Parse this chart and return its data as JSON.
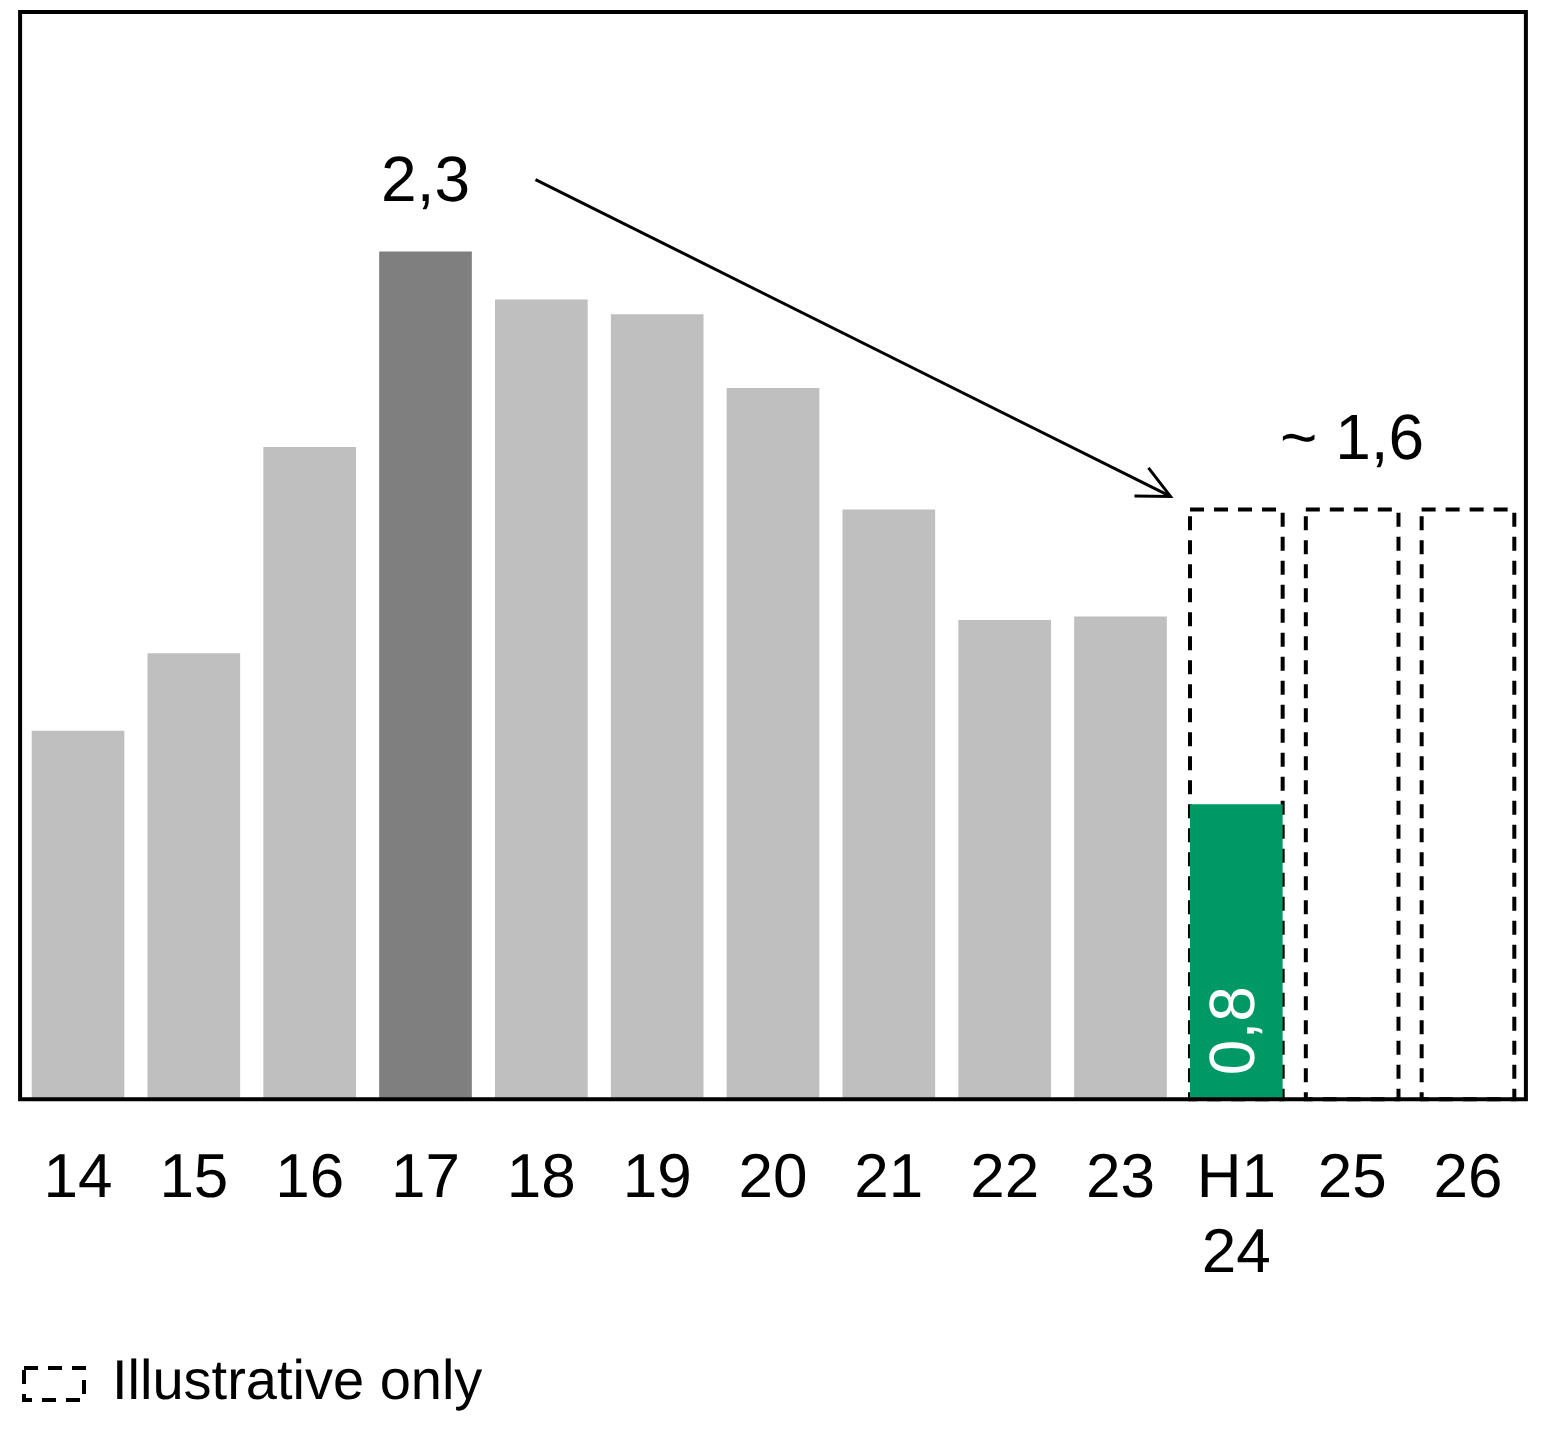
{
  "chart_data": {
    "type": "bar",
    "categories": [
      "14",
      "15",
      "16",
      "17",
      "18",
      "19",
      "20",
      "21",
      "22",
      "23",
      "H1 24",
      "25",
      "26"
    ],
    "series": [
      {
        "colors": [
          "#bfbfbf",
          "#bfbfbf",
          "#bfbfbf",
          "#7f7f7f",
          "#bfbfbf",
          "#bfbfbf",
          "#bfbfbf",
          "#bfbfbf",
          "#bfbfbf",
          "#bfbfbf",
          "#009966",
          null,
          null
        ],
        "values": [
          1.0,
          1.21,
          1.77,
          2.3,
          2.17,
          2.13,
          1.93,
          1.6,
          1.3,
          1.31,
          0.8,
          null,
          null
        ],
        "value_labels": [
          null,
          null,
          null,
          "2,3",
          null,
          null,
          null,
          null,
          null,
          null,
          "0,8",
          null,
          null
        ]
      },
      {
        "name": "Illustrative only",
        "color": "#000000",
        "line_style": "dashed",
        "values": [
          null,
          null,
          null,
          null,
          null,
          null,
          null,
          null,
          null,
          null,
          1.6,
          1.6,
          1.6
        ],
        "value_labels": [
          null,
          null,
          null,
          null,
          null,
          null,
          null,
          null,
          null,
          null,
          null,
          "~ 1,6",
          null
        ]
      }
    ],
    "ylim": [
      0,
      2.95
    ],
    "tick_labels": "x",
    "grid": false,
    "legend": "bottom left"
  }
}
